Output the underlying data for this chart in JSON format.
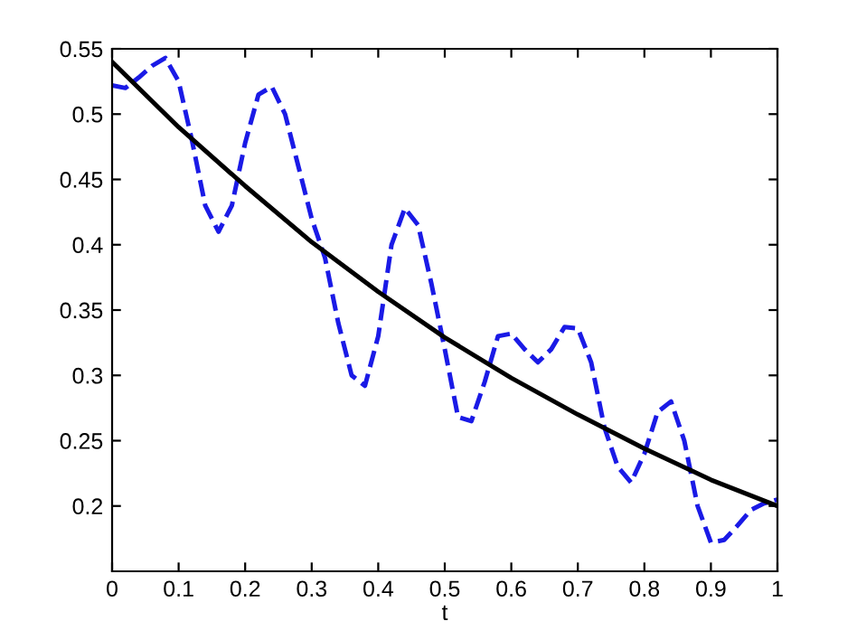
{
  "chart_data": {
    "type": "line",
    "xlabel": "t",
    "xlim": [
      0,
      1
    ],
    "xticks": [
      0,
      0.1,
      0.2,
      0.3,
      0.4,
      0.5,
      0.6,
      0.7,
      0.8,
      0.9,
      1
    ],
    "ylim": [
      0.15,
      0.55
    ],
    "yticks": [
      0.2,
      0.25,
      0.3,
      0.35,
      0.4,
      0.45,
      0.5,
      0.55
    ],
    "grid": false,
    "legend": false,
    "series": [
      {
        "color": "#1a1ae6",
        "line_style": "dashed",
        "x": [
          0,
          0.02,
          0.04,
          0.06,
          0.08,
          0.1,
          0.12,
          0.14,
          0.16,
          0.18,
          0.2,
          0.22,
          0.24,
          0.26,
          0.28,
          0.3,
          0.32,
          0.34,
          0.36,
          0.38,
          0.4,
          0.42,
          0.44,
          0.46,
          0.48,
          0.5,
          0.52,
          0.54,
          0.56,
          0.58,
          0.6,
          0.62,
          0.64,
          0.66,
          0.68,
          0.7,
          0.72,
          0.74,
          0.76,
          0.78,
          0.8,
          0.82,
          0.84,
          0.86,
          0.88,
          0.9,
          0.92,
          0.94,
          0.96,
          0.98,
          1
        ],
        "values": [
          0.522,
          0.52,
          0.528,
          0.537,
          0.543,
          0.525,
          0.48,
          0.43,
          0.41,
          0.43,
          0.478,
          0.515,
          0.521,
          0.5,
          0.46,
          0.42,
          0.39,
          0.34,
          0.3,
          0.292,
          0.33,
          0.4,
          0.428,
          0.415,
          0.37,
          0.32,
          0.268,
          0.265,
          0.295,
          0.33,
          0.332,
          0.32,
          0.31,
          0.32,
          0.337,
          0.336,
          0.31,
          0.26,
          0.23,
          0.218,
          0.24,
          0.272,
          0.28,
          0.25,
          0.2,
          0.172,
          0.174,
          0.185,
          0.197,
          0.202,
          0.205
        ]
      },
      {
        "color": "#000000",
        "line_style": "solid",
        "x": [
          0,
          0.1,
          0.2,
          0.3,
          0.4,
          0.5,
          0.6,
          0.7,
          0.8,
          0.9,
          1
        ],
        "values": [
          0.54,
          0.49,
          0.445,
          0.402,
          0.364,
          0.329,
          0.298,
          0.27,
          0.244,
          0.22,
          0.2
        ]
      }
    ]
  }
}
